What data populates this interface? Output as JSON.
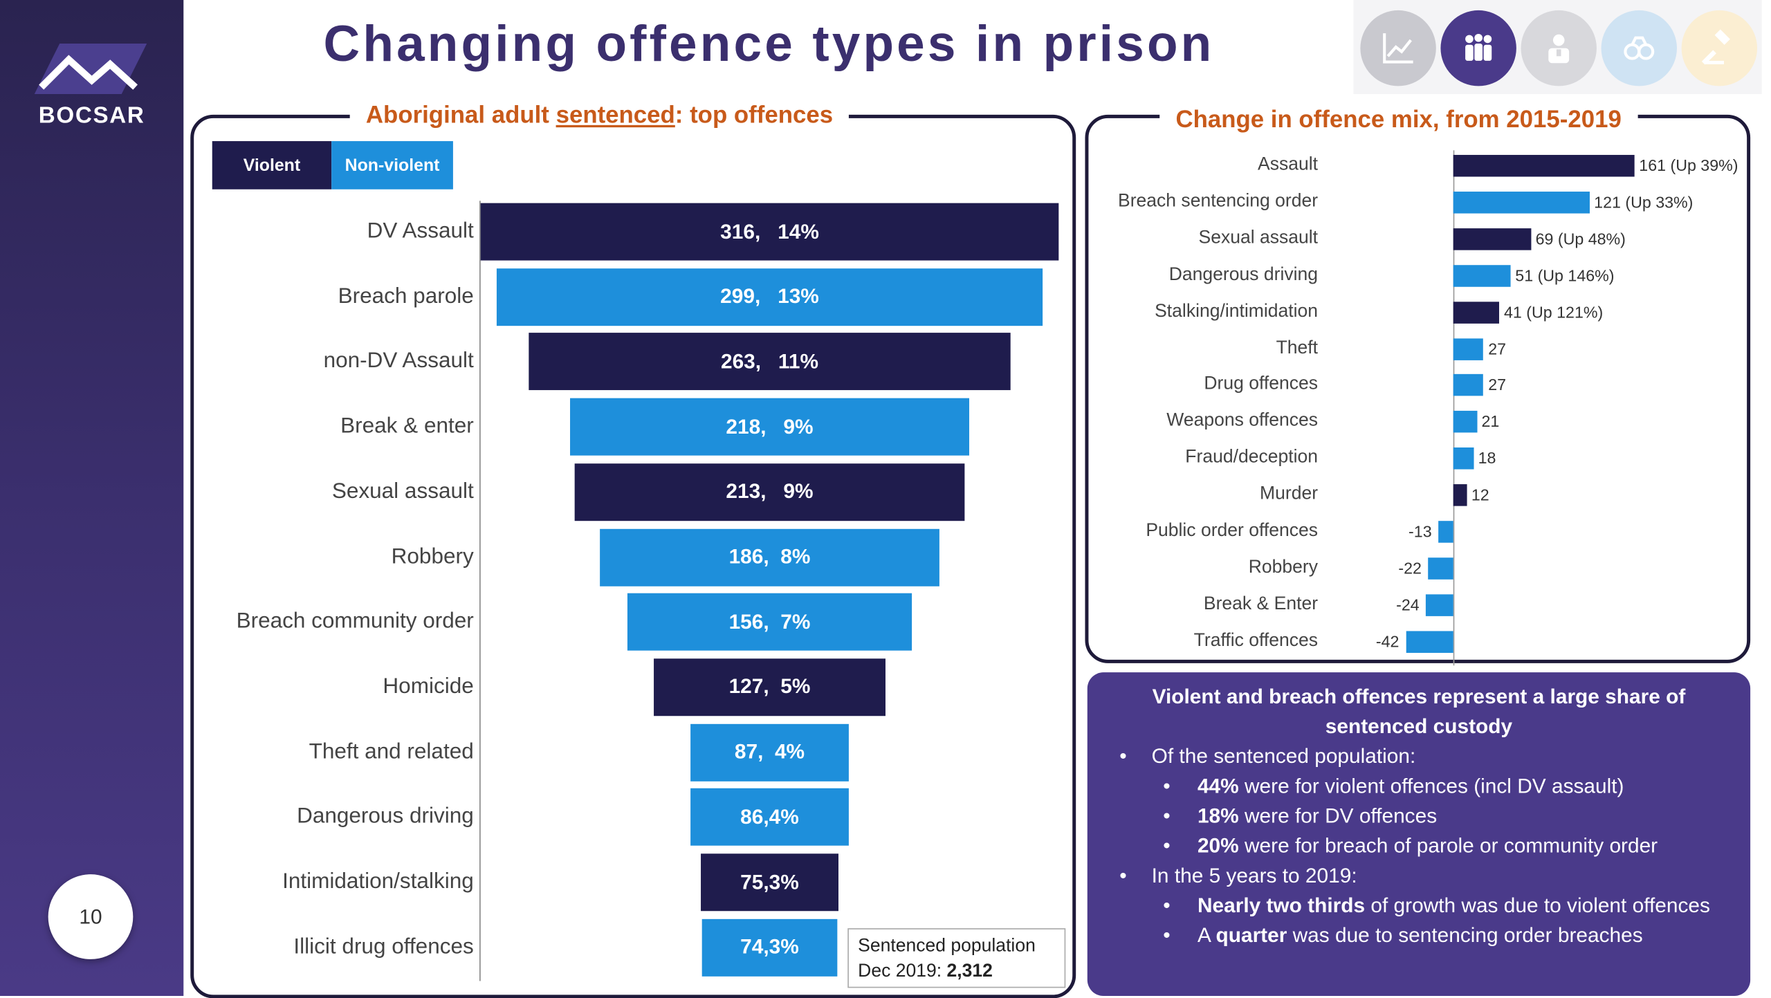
{
  "brand": {
    "name": "BOCSAR"
  },
  "page_number": "10",
  "title": "Changing offence types in prison",
  "nav": [
    {
      "name": "trend-chart-icon",
      "bg": "#c9c9cf"
    },
    {
      "name": "people-icon",
      "bg": "#4a3a8a"
    },
    {
      "name": "custody-icon",
      "bg": "#d8d8dc"
    },
    {
      "name": "handcuffs-icon",
      "bg": "#cfe3f3"
    },
    {
      "name": "gavel-icon",
      "bg": "#fbeed2"
    }
  ],
  "left_panel": {
    "title_parts": [
      "Aboriginal adult ",
      "sentenced",
      ": top offences"
    ],
    "legend": {
      "violent": "Violent",
      "nonviolent": "Non-violent"
    },
    "population_label": "Sentenced population",
    "population_date": "Dec 2019: ",
    "population_value": "2,312"
  },
  "right_panel": {
    "title": "Change in offence mix, from 2015-2019"
  },
  "colors": {
    "violent": "#1f1c4d",
    "nonviolent": "#1e8fdb",
    "accent": "#c85a1a",
    "summary_bg": "#4a3a8a"
  },
  "chart_data": [
    {
      "type": "bar",
      "orientation": "horizontal-funnel",
      "categories": [
        "DV Assault",
        "Breach parole",
        "non-DV Assault",
        "Break & enter",
        "Sexual assault",
        "Robbery",
        "Breach community order",
        "Homicide",
        "Theft and related",
        "Dangerous driving",
        "Intimidation/stalking",
        "Illicit drug offences"
      ],
      "values": [
        316,
        299,
        263,
        218,
        213,
        186,
        156,
        127,
        87,
        86,
        75,
        74
      ],
      "percents": [
        "14%",
        "13%",
        "11%",
        "9%",
        "9%",
        "8%",
        "7%",
        "5%",
        "4%",
        "4%",
        "3%",
        "3%"
      ],
      "data_labels": [
        "316,   14%",
        "299,   13%",
        "263,   11%",
        "218,   9%",
        "213,   9%",
        "186,  8%",
        "156,  7%",
        "127,  5%",
        "87,  4%",
        "86,4%",
        "75,3%",
        "74,3%"
      ],
      "kind": [
        "violent",
        "nonviolent",
        "violent",
        "nonviolent",
        "violent",
        "nonviolent",
        "nonviolent",
        "violent",
        "nonviolent",
        "nonviolent",
        "violent",
        "nonviolent"
      ]
    },
    {
      "type": "bar",
      "orientation": "horizontal",
      "categories": [
        "Assault",
        "Breach sentencing order",
        "Sexual assault",
        "Dangerous driving",
        "Stalking/intimidation",
        "Theft",
        "Drug offences",
        "Weapons offences",
        "Fraud/deception",
        "Murder",
        "Public order offences",
        "Robbery",
        "Break & Enter",
        "Traffic offences"
      ],
      "values": [
        161,
        121,
        69,
        51,
        41,
        27,
        27,
        21,
        18,
        12,
        -13,
        -22,
        -24,
        -42
      ],
      "data_labels": [
        "161 (Up 39%)",
        "121 (Up 33%)",
        "69 (Up 48%)",
        "51 (Up 146%)",
        "41 (Up 121%)",
        "27",
        "27",
        "21",
        "18",
        "12",
        "-13",
        "-22",
        "-24",
        "-42"
      ],
      "kind": [
        "violent",
        "nonviolent",
        "violent",
        "nonviolent",
        "violent",
        "nonviolent",
        "nonviolent",
        "nonviolent",
        "nonviolent",
        "violent",
        "nonviolent",
        "nonviolent",
        "nonviolent",
        "nonviolent"
      ]
    }
  ],
  "summary": {
    "title": "Violent and breach offences represent a large share of sentenced custody",
    "b1": "Of the sentenced population:",
    "b1_items": [
      {
        "bold": "44%",
        "text": " were for violent offences (incl DV assault)"
      },
      {
        "bold": "18%",
        "text": " were for DV offences"
      },
      {
        "bold": "20%",
        "text": " were for breach of parole or community order"
      }
    ],
    "b2": "In the 5 years to 2019:",
    "b2_items": [
      {
        "bold": "Nearly two thirds",
        "text": " of growth was due to violent offences"
      },
      {
        "pre": "A ",
        "bold": "quarter",
        "text": " was due to sentencing order breaches"
      }
    ]
  }
}
